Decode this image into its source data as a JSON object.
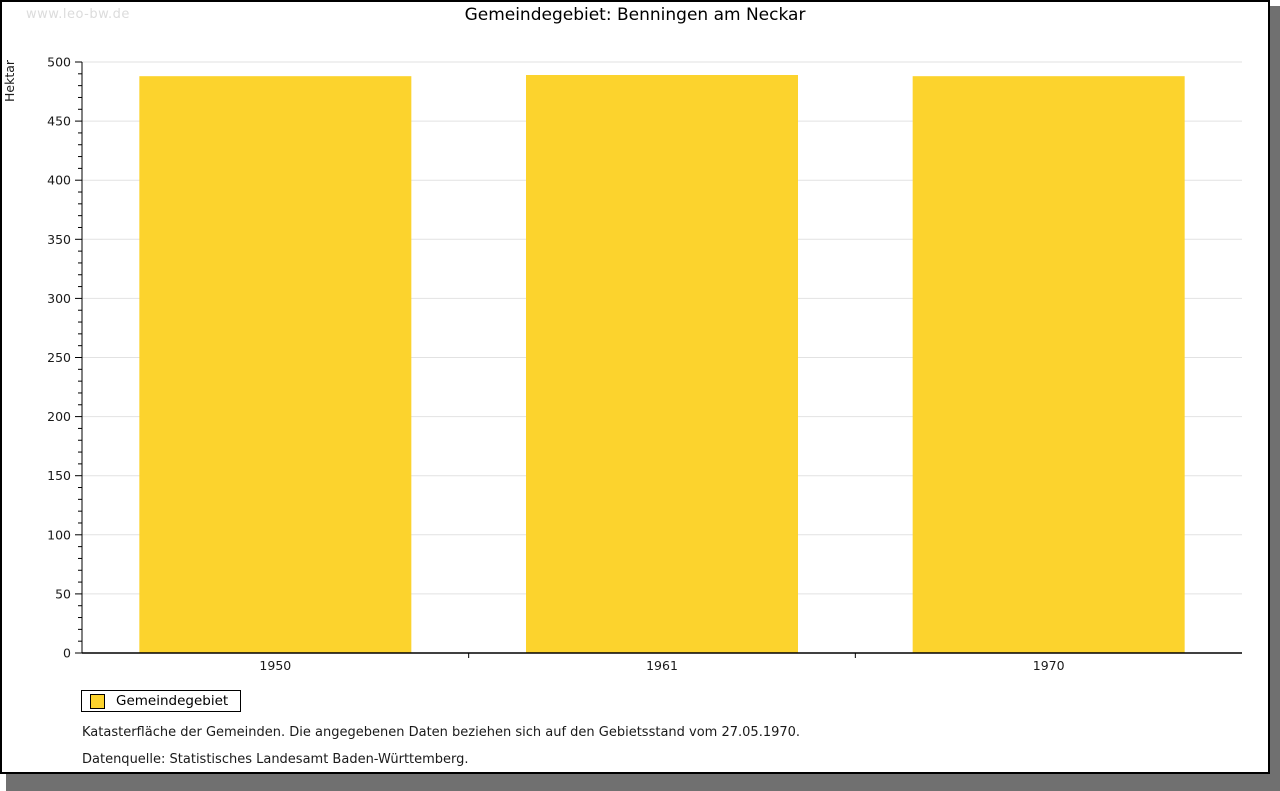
{
  "watermark": "www.leo-bw.de",
  "header": {
    "title": "Gemeindegebiet: Benningen am Neckar"
  },
  "chart_data": {
    "type": "bar",
    "title": "Gemeindegebiet: Benningen am Neckar",
    "categories": [
      "1950",
      "1961",
      "1970"
    ],
    "series": [
      {
        "name": "Gemeindegebiet",
        "values": [
          488,
          489,
          488
        ]
      }
    ],
    "ylabel": "Hektar",
    "xlabel": "",
    "ylim": [
      0,
      500
    ],
    "ytick_major": 50,
    "ytick_minor": 10,
    "grid": true,
    "legend_position": "bottom-left",
    "bar_color": "#fcd32d"
  },
  "legend": {
    "items": [
      {
        "label": "Gemeindegebiet",
        "color": "#fcd32d"
      }
    ]
  },
  "footnotes": {
    "line1": "Katasterfläche der Gemeinden. Die angegebenen Daten beziehen sich auf den Gebietsstand vom 27.05.1970.",
    "line2": "Datenquelle: Statistisches Landesamt Baden-Württemberg."
  },
  "colors": {
    "bar": "#fcd32d",
    "grid": "#e2e2e2",
    "axis": "#000000",
    "tick_label": "#1a1a1a",
    "shadow": "#707070",
    "watermark": "#dcdcdc",
    "background": "#ffffff"
  }
}
